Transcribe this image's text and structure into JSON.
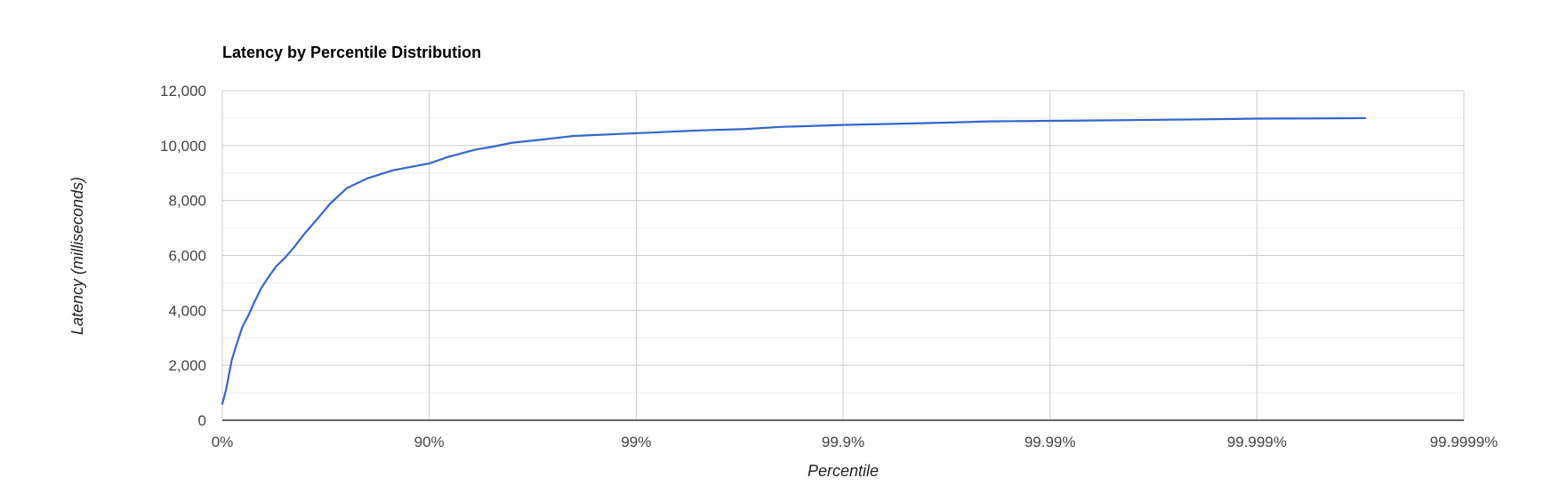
{
  "chart_data": {
    "type": "line",
    "title": "Latency by Percentile Distribution",
    "xlabel": "Percentile",
    "ylabel": "Latency (milliseconds)",
    "x_scale": "log-inverse-percentile",
    "x_ticks": [
      "0%",
      "90%",
      "99%",
      "99.9%",
      "99.99%",
      "99.999%",
      "99.9999%"
    ],
    "y_ticks": [
      "0",
      "2,000",
      "4,000",
      "6,000",
      "8,000",
      "10,000",
      "12,000"
    ],
    "ylim": [
      0,
      12000
    ],
    "grid": true,
    "legend": "none",
    "colors": {
      "line": "#3366cc",
      "grid_major": "#cccccc",
      "grid_minor": "#ebebeb",
      "baseline": "#333333",
      "tick_text": "#444444"
    },
    "series": [
      {
        "x": [
          0,
          4,
          10,
          15,
          20,
          25,
          30,
          35,
          40,
          45,
          50,
          55,
          60,
          65,
          70,
          75,
          80,
          85,
          90,
          92,
          94,
          95,
          96,
          97,
          98,
          99,
          99.5,
          99.7,
          99.8,
          99.9,
          99.95,
          99.97,
          99.98,
          99.99,
          99.995,
          99.998,
          99.999,
          99.9995,
          99.9997
        ],
        "y": [
          600,
          1100,
          2200,
          2800,
          3400,
          3800,
          4300,
          4800,
          5200,
          5600,
          5900,
          6300,
          6800,
          7300,
          7900,
          8450,
          8800,
          9100,
          9350,
          9600,
          9850,
          9950,
          10100,
          10200,
          10350,
          10450,
          10550,
          10600,
          10680,
          10750,
          10800,
          10840,
          10880,
          10900,
          10920,
          10950,
          10980,
          10990,
          11000
        ]
      }
    ]
  }
}
